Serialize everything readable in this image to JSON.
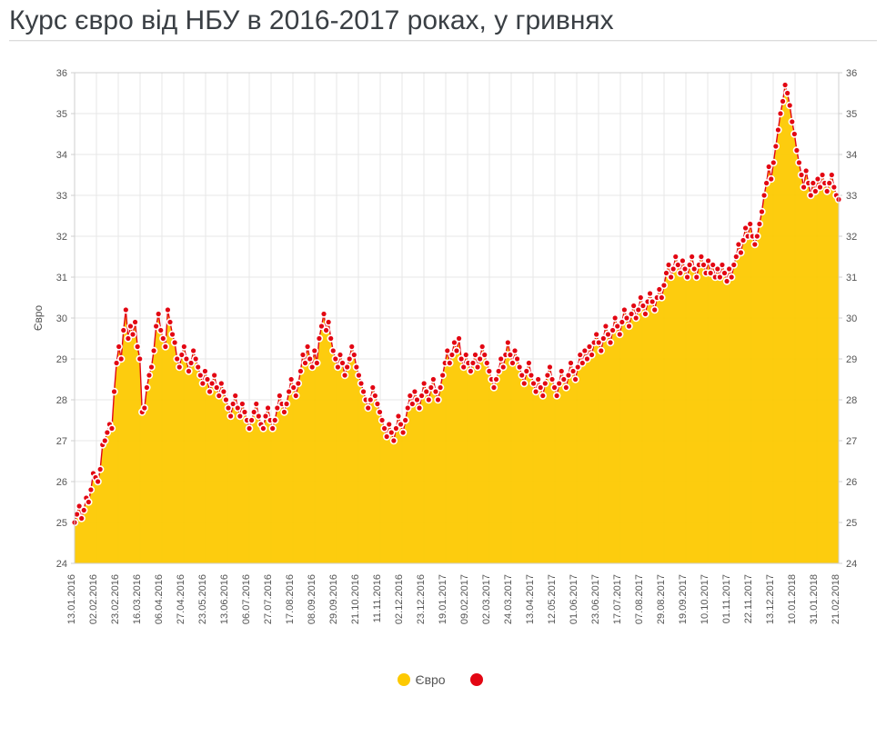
{
  "title": "Курс євро від НБУ в 2016-2017 роках, у гривнях",
  "chart": {
    "type": "area-with-markers",
    "y_axis_label": "Євро",
    "y_axis_label_fontsize": 12,
    "y_axis_label_color": "#555555",
    "ylim": [
      24,
      36
    ],
    "ytick_step": 1,
    "yticks": [
      24,
      25,
      26,
      27,
      28,
      29,
      30,
      31,
      32,
      33,
      34,
      35,
      36
    ],
    "x_labels": [
      "13.01.2016",
      "02.02.2016",
      "23.02.2016",
      "16.03.2016",
      "06.04.2016",
      "27.04.2016",
      "23.05.2016",
      "13.06.2016",
      "06.07.2016",
      "27.07.2016",
      "17.08.2016",
      "08.09.2016",
      "29.09.2016",
      "21.10.2016",
      "11.11.2016",
      "02.12.2016",
      "23.12.2016",
      "19.01.2017",
      "09.02.2017",
      "02.03.2017",
      "24.03.2017",
      "13.04.2017",
      "12.05.2017",
      "01.06.2017",
      "23.06.2017",
      "17.07.2017",
      "07.08.2017",
      "29.08.2017",
      "19.09.2017",
      "10.10.2017",
      "01.11.2017",
      "22.11.2017",
      "13.12.2017",
      "10.01.2018",
      "31.01.2018",
      "21.02.2018"
    ],
    "x_label_fontsize": 11,
    "x_label_rotation": -90,
    "x_label_color": "#555555",
    "area_color": "#fdc901",
    "line_color": "#e30613",
    "line_width": 1.4,
    "marker_fill": "#e30613",
    "marker_stroke": "#ffffff",
    "marker_stroke_width": 1.6,
    "marker_radius": 3.4,
    "background_color": "#ffffff",
    "grid_color": "#e7e7e7",
    "border_color": "#cfcfcf",
    "tick_label_fontsize": 11,
    "tick_label_color": "#555555",
    "series": {
      "name": "Євро",
      "values": [
        25.0,
        25.2,
        25.4,
        25.1,
        25.3,
        25.6,
        25.5,
        25.8,
        26.2,
        26.1,
        26.0,
        26.3,
        26.9,
        27.0,
        27.2,
        27.4,
        27.3,
        28.2,
        28.9,
        29.3,
        29.0,
        29.7,
        30.2,
        29.5,
        29.8,
        29.6,
        29.9,
        29.3,
        29.0,
        27.7,
        27.8,
        28.3,
        28.6,
        28.8,
        29.2,
        29.8,
        30.1,
        29.7,
        29.5,
        29.3,
        30.2,
        29.9,
        29.6,
        29.4,
        29.0,
        28.8,
        29.1,
        29.3,
        29.0,
        28.7,
        28.9,
        29.2,
        29.0,
        28.8,
        28.6,
        28.4,
        28.7,
        28.5,
        28.2,
        28.4,
        28.6,
        28.3,
        28.1,
        28.4,
        28.2,
        28.0,
        27.8,
        27.6,
        27.9,
        28.1,
        27.8,
        27.6,
        27.9,
        27.7,
        27.5,
        27.3,
        27.5,
        27.7,
        27.9,
        27.6,
        27.4,
        27.3,
        27.6,
        27.8,
        27.5,
        27.3,
        27.5,
        27.8,
        28.1,
        27.9,
        27.7,
        27.9,
        28.2,
        28.5,
        28.3,
        28.1,
        28.4,
        28.7,
        29.1,
        28.9,
        29.3,
        29.0,
        28.8,
        29.2,
        28.9,
        29.5,
        29.8,
        30.1,
        29.7,
        29.9,
        29.5,
        29.2,
        29.0,
        28.8,
        29.1,
        28.9,
        28.6,
        28.8,
        29.0,
        29.3,
        29.1,
        28.8,
        28.6,
        28.4,
        28.2,
        28.0,
        27.8,
        28.0,
        28.3,
        28.1,
        27.9,
        27.7,
        27.5,
        27.3,
        27.1,
        27.4,
        27.2,
        27.0,
        27.3,
        27.6,
        27.4,
        27.2,
        27.5,
        27.8,
        28.1,
        27.9,
        28.2,
        28.0,
        27.8,
        28.1,
        28.4,
        28.2,
        28.0,
        28.3,
        28.5,
        28.2,
        28.0,
        28.3,
        28.6,
        28.9,
        29.2,
        28.9,
        29.1,
        29.4,
        29.2,
        29.5,
        29.0,
        28.8,
        29.1,
        28.9,
        28.7,
        28.9,
        29.1,
        28.8,
        29.0,
        29.3,
        29.1,
        28.9,
        28.7,
        28.5,
        28.3,
        28.5,
        28.7,
        29.0,
        28.8,
        29.1,
        29.4,
        29.1,
        28.9,
        29.2,
        29.0,
        28.8,
        28.6,
        28.4,
        28.7,
        28.9,
        28.6,
        28.4,
        28.2,
        28.5,
        28.3,
        28.1,
        28.4,
        28.6,
        28.8,
        28.5,
        28.3,
        28.1,
        28.4,
        28.7,
        28.5,
        28.3,
        28.6,
        28.9,
        28.7,
        28.5,
        28.8,
        29.1,
        28.9,
        29.2,
        29.0,
        29.3,
        29.1,
        29.4,
        29.6,
        29.4,
        29.2,
        29.5,
        29.8,
        29.6,
        29.4,
        29.7,
        30.0,
        29.8,
        29.6,
        29.9,
        30.2,
        30.0,
        29.8,
        30.1,
        30.3,
        30.0,
        30.2,
        30.5,
        30.3,
        30.1,
        30.4,
        30.6,
        30.4,
        30.2,
        30.5,
        30.7,
        30.5,
        30.8,
        31.1,
        31.3,
        31.0,
        31.2,
        31.5,
        31.3,
        31.1,
        31.4,
        31.2,
        31.0,
        31.3,
        31.5,
        31.2,
        31.0,
        31.3,
        31.5,
        31.3,
        31.1,
        31.4,
        31.1,
        31.3,
        31.0,
        31.2,
        31.0,
        31.3,
        31.1,
        30.9,
        31.2,
        31.0,
        31.3,
        31.5,
        31.8,
        31.6,
        31.9,
        32.2,
        32.0,
        32.3,
        32.0,
        31.8,
        32.0,
        32.3,
        32.6,
        33.0,
        33.3,
        33.7,
        33.4,
        33.8,
        34.2,
        34.6,
        35.0,
        35.3,
        35.7,
        35.5,
        35.2,
        34.8,
        34.5,
        34.1,
        33.8,
        33.5,
        33.2,
        33.6,
        33.3,
        33.0,
        33.3,
        33.1,
        33.4,
        33.2,
        33.5,
        33.3,
        33.1,
        33.3,
        33.5,
        33.2,
        33.0,
        32.9
      ]
    },
    "legend": {
      "items": [
        {
          "label": "Євро",
          "color": "#fdc901"
        },
        {
          "label": "",
          "color": "#e30613"
        }
      ]
    }
  }
}
